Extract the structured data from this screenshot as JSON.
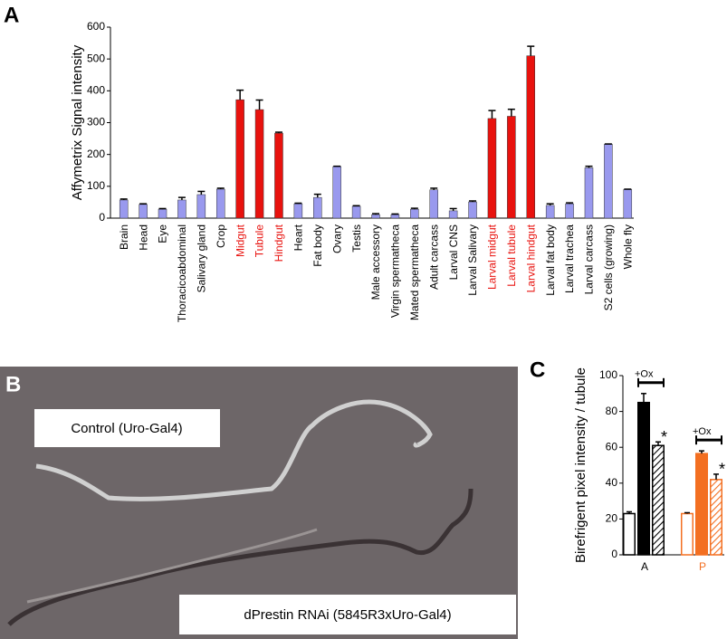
{
  "chart_data": [
    {
      "type": "bar",
      "panel": "A",
      "ylabel": "Affymetrix Signal intensity",
      "categories": [
        "Brain",
        "Head",
        "Eye",
        "Thoracicoabdominal",
        "Salivary gland",
        "Crop",
        "Midgut",
        "Tubule",
        "Hindgut",
        "Heart",
        "Fat body",
        "Ovary",
        "Testis",
        "Male accessory",
        "Virgin spermatheca",
        "Mated spermatheca",
        "Adult carcass",
        "Larval CNS",
        "Larval Salivary",
        "Larval midgut",
        "Larval tubule",
        "Larval hindgut",
        "Larval fat body",
        "Larval trachea",
        "Larval carcass",
        "S2 cells (growing)",
        "Whole fly"
      ],
      "values": [
        57,
        43,
        28,
        57,
        74,
        91,
        372,
        341,
        267,
        45,
        65,
        162,
        37,
        11,
        11,
        28,
        89,
        23,
        51,
        313,
        320,
        510,
        40,
        45,
        158,
        232,
        90
      ],
      "errors": [
        3,
        2,
        2,
        8,
        10,
        3,
        30,
        30,
        3,
        2,
        10,
        1,
        2,
        3,
        2,
        3,
        5,
        7,
        3,
        25,
        22,
        30,
        5,
        3,
        5,
        1,
        1
      ],
      "colors": [
        "#9999ee",
        "#9999ee",
        "#9999ee",
        "#9999ee",
        "#9999ee",
        "#9999ee",
        "#e8120e",
        "#e8120e",
        "#e8120e",
        "#9999ee",
        "#9999ee",
        "#9999ee",
        "#9999ee",
        "#9999ee",
        "#9999ee",
        "#9999ee",
        "#9999ee",
        "#9999ee",
        "#9999ee",
        "#e8120e",
        "#e8120e",
        "#e8120e",
        "#9999ee",
        "#9999ee",
        "#9999ee",
        "#9999ee",
        "#9999ee"
      ],
      "label_colors": [
        "#000000",
        "#000000",
        "#000000",
        "#000000",
        "#000000",
        "#000000",
        "#e8120e",
        "#e8120e",
        "#e8120e",
        "#000000",
        "#000000",
        "#000000",
        "#000000",
        "#000000",
        "#000000",
        "#000000",
        "#000000",
        "#000000",
        "#000000",
        "#e8120e",
        "#e8120e",
        "#e8120e",
        "#000000",
        "#000000",
        "#000000",
        "#000000",
        "#000000"
      ],
      "ylim": [
        0,
        600
      ],
      "yticks": [
        0,
        100,
        200,
        300,
        400,
        500,
        600
      ]
    },
    {
      "type": "bar",
      "panel": "C",
      "ylabel": "Birefrigent pixel intensity / tubule",
      "categories": [
        "A",
        "P"
      ],
      "colors": [
        "#000000",
        "#f36f21"
      ],
      "series": [
        {
          "style": "open",
          "values": [
            23,
            23
          ],
          "errors": [
            1,
            0.5
          ]
        },
        {
          "style": "solid",
          "values": [
            85,
            56.5
          ],
          "errors": [
            5,
            1.5
          ]
        },
        {
          "style": "hatched",
          "values": [
            61,
            42
          ],
          "errors": [
            2,
            3
          ]
        }
      ],
      "brackets": [
        {
          "text": "+Ox",
          "category": "A"
        },
        {
          "text": "+Ox",
          "category": "P"
        }
      ],
      "markers": [
        {
          "text": "*",
          "category": "A"
        },
        {
          "text": "*",
          "category": "P"
        }
      ],
      "ylim": [
        0,
        100
      ],
      "yticks": [
        0,
        20,
        40,
        60,
        80,
        100
      ]
    }
  ],
  "image_panel": {
    "panel": "B",
    "captions": [
      "Control (Uro-Gal4)",
      "dPrestin RNAi (5845R3xUro-Gal4)"
    ]
  }
}
